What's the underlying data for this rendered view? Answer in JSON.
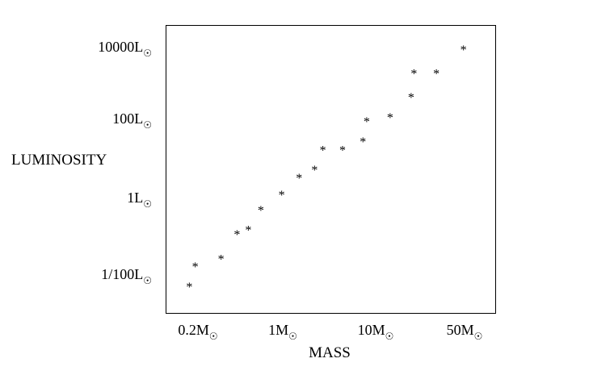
{
  "chart_data": {
    "type": "scatter",
    "title": "",
    "xlabel": "MASS",
    "ylabel": "LUMINOSITY",
    "x_scale": "log",
    "y_scale": "log",
    "marker": "*",
    "x_ticks": [
      {
        "value": 0.2,
        "text": "0.2M",
        "sub": "☉"
      },
      {
        "value": 1,
        "text": "1M",
        "sub": "☉"
      },
      {
        "value": 10,
        "text": "10M",
        "sub": "☉"
      },
      {
        "value": 50,
        "text": "50M",
        "sub": "☉"
      }
    ],
    "y_ticks": [
      {
        "value": 10000,
        "text": "10000L",
        "sub": "☉"
      },
      {
        "value": 100,
        "text": "100L",
        "sub": "☉"
      },
      {
        "value": 1,
        "text": "1L",
        "sub": "☉"
      },
      {
        "value": 0.01,
        "text": "1/100L",
        "sub": "☉"
      }
    ],
    "points": [
      {
        "mass": 0.17,
        "luminosity": 0.0056
      },
      {
        "mass": 0.19,
        "luminosity": 0.019
      },
      {
        "mass": 0.31,
        "luminosity": 0.03
      },
      {
        "mass": 0.42,
        "luminosity": 0.13
      },
      {
        "mass": 0.52,
        "luminosity": 0.17
      },
      {
        "mass": 0.66,
        "luminosity": 0.56
      },
      {
        "mass": 0.98,
        "luminosity": 1.4
      },
      {
        "mass": 1.5,
        "luminosity": 3.7
      },
      {
        "mass": 2.2,
        "luminosity": 6
      },
      {
        "mass": 2.7,
        "luminosity": 19
      },
      {
        "mass": 4.4,
        "luminosity": 19
      },
      {
        "mass": 7.3,
        "luminosity": 31
      },
      {
        "mass": 8.0,
        "luminosity": 100
      },
      {
        "mass": 13,
        "luminosity": 130
      },
      {
        "mass": 19,
        "luminosity": 470
      },
      {
        "mass": 20,
        "luminosity": 2200
      },
      {
        "mass": 30,
        "luminosity": 2200
      },
      {
        "mass": 49,
        "luminosity": 10000
      }
    ],
    "grid": false,
    "legend": "none"
  }
}
